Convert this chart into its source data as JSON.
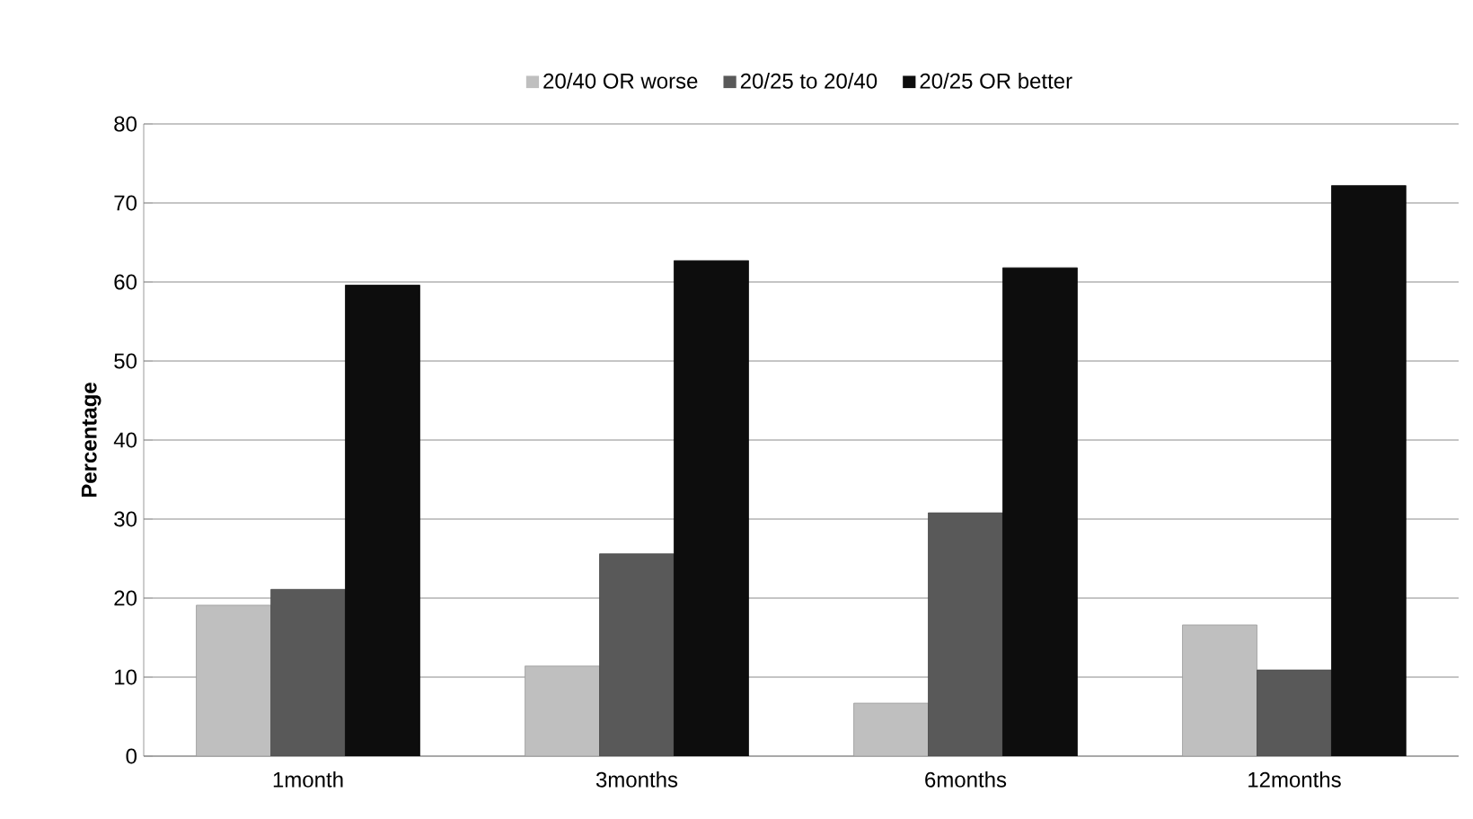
{
  "chart_data": {
    "type": "bar",
    "ylabel": "Percentage",
    "categories": [
      "1month",
      "3months",
      "6months",
      "12months"
    ],
    "series": [
      {
        "name": "20/40 OR worse",
        "color": "#bfbfbf",
        "values": [
          19.1,
          11.4,
          6.7,
          16.6
        ]
      },
      {
        "name": "20/25 to 20/40",
        "color": "#595959",
        "values": [
          21.1,
          25.6,
          30.8,
          10.9
        ]
      },
      {
        "name": "20/25 OR better",
        "color": "#0d0d0d",
        "values": [
          59.6,
          62.7,
          61.8,
          72.2
        ]
      }
    ],
    "ylim": [
      0,
      80
    ],
    "yticks": [
      0,
      10,
      20,
      30,
      40,
      50,
      60,
      70,
      80
    ],
    "grid": "y",
    "legend": "top"
  }
}
